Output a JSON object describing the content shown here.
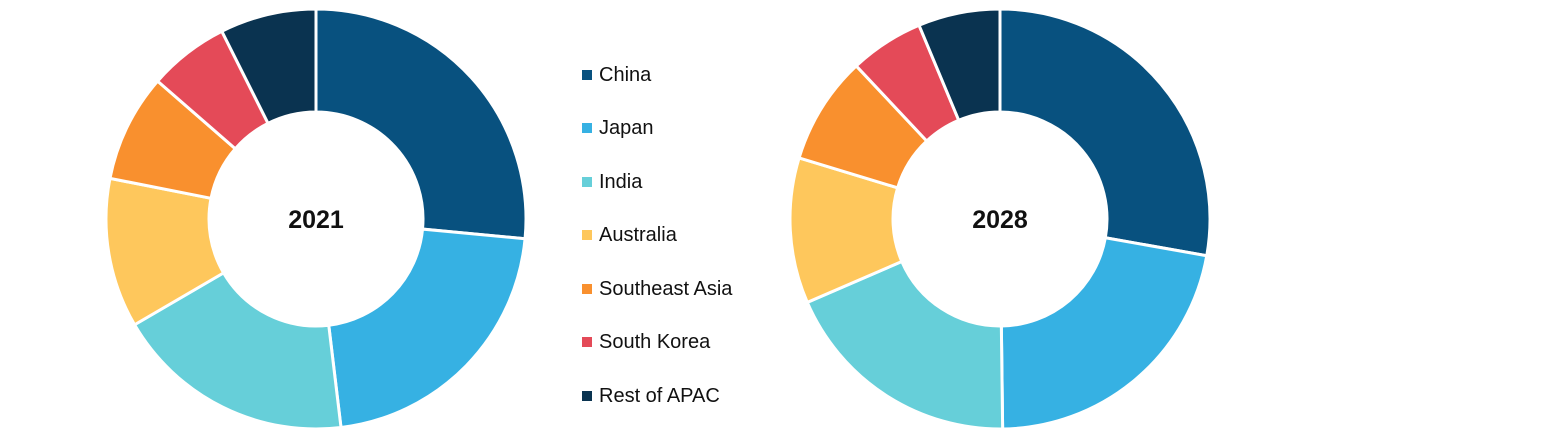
{
  "chart_data": [
    {
      "type": "pie",
      "title": "",
      "center_label": "2021",
      "categories": [
        "China",
        "Japan",
        "India",
        "Australia",
        "Southeast Asia",
        "South Korea",
        "Rest of APAC"
      ],
      "values": [
        26.5,
        21.6,
        18.5,
        11.5,
        8.3,
        6.2,
        7.4
      ]
    },
    {
      "type": "pie",
      "title": "",
      "center_label": "2028",
      "categories": [
        "China",
        "Japan",
        "India",
        "Australia",
        "Southeast Asia",
        "South Korea",
        "Rest of APAC"
      ],
      "values": [
        27.8,
        22.0,
        18.7,
        11.2,
        8.3,
        5.7,
        6.3
      ]
    }
  ],
  "legend": {
    "placement": "between-charts",
    "items": [
      {
        "label": "China",
        "color": "#08517f"
      },
      {
        "label": "Japan",
        "color": "#36b1e3"
      },
      {
        "label": "India",
        "color": "#66cfd9"
      },
      {
        "label": "Australia",
        "color": "#fec75c"
      },
      {
        "label": "Southeast Asia",
        "color": "#f9902e"
      },
      {
        "label": "South Korea",
        "color": "#e44a58"
      },
      {
        "label": "Rest of APAC",
        "color": "#0a3350"
      }
    ]
  }
}
